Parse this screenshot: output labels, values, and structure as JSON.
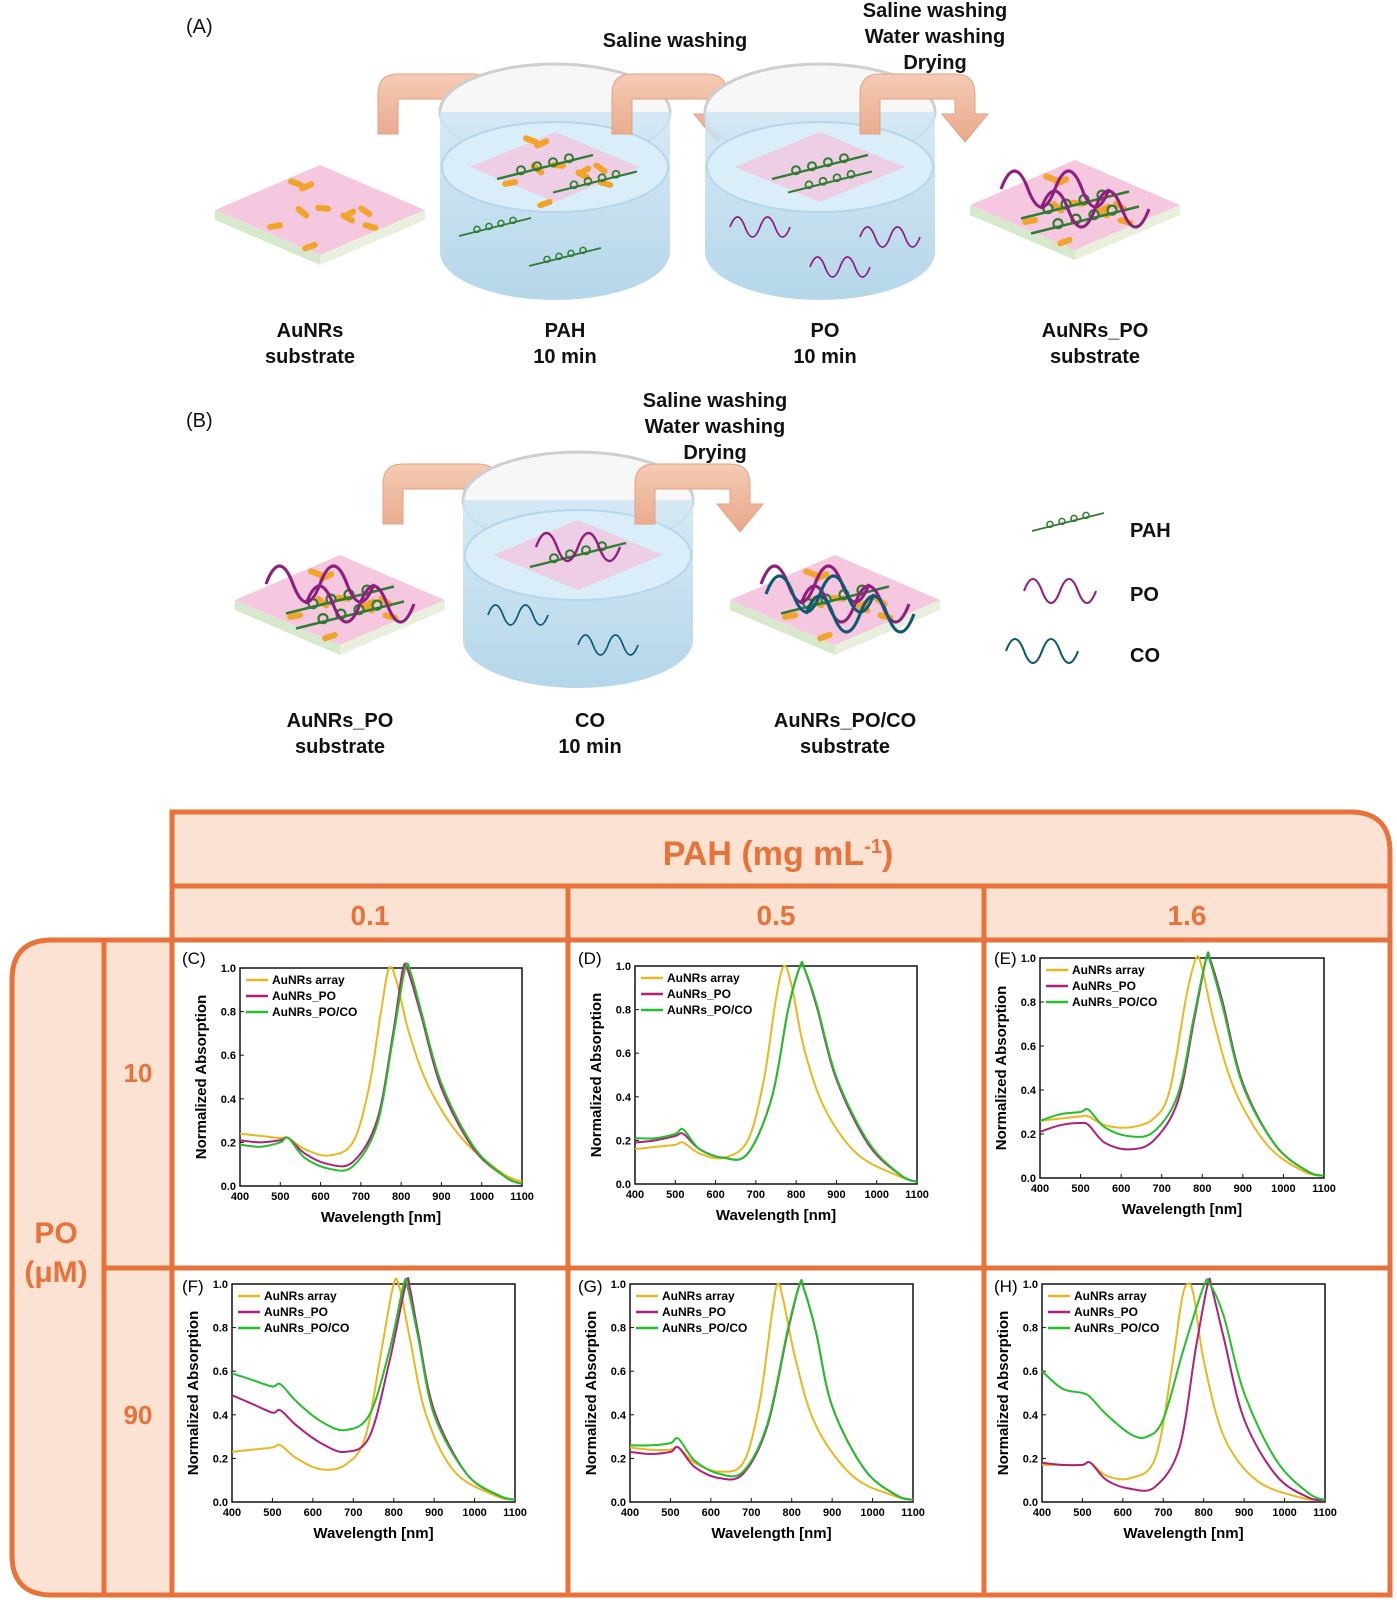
{
  "figure": {
    "panel_A": {
      "label": "(A)",
      "arrow_labels": [
        "Saline washing",
        "Saline washing\nWater washing\nDrying"
      ],
      "steps": [
        {
          "line1": "AuNRs",
          "line2": "substrate"
        },
        {
          "line1": "PAH",
          "line2": "10 min"
        },
        {
          "line1": "PO",
          "line2": "10 min"
        },
        {
          "line1": "AuNRs_PO",
          "line2": "substrate"
        }
      ]
    },
    "panel_B": {
      "label": "(B)",
      "arrow_label": "Saline washing\nWater washing\nDrying",
      "steps": [
        {
          "line1": "AuNRs_PO",
          "line2": "substrate"
        },
        {
          "line1": "CO",
          "line2": "10 min"
        },
        {
          "line1": "AuNRs_PO/CO",
          "line2": "substrate"
        }
      ],
      "legend": [
        {
          "label": "PAH",
          "color": "#2e7d32"
        },
        {
          "label": "PO",
          "color": "#8e1f7f"
        },
        {
          "label": "CO",
          "color": "#0f5a73"
        }
      ]
    },
    "grid": {
      "accent": "#e8733a",
      "fill": "#fbe2d3",
      "col_header": "PAH (mg mL",
      "col_header_sup": "-1",
      "col_header_close": ")",
      "cols": [
        "0.1",
        "0.5",
        "1.6"
      ],
      "row_header_line1": "PO",
      "row_header_line2": "(μM)",
      "rows": [
        "10",
        "90"
      ]
    }
  },
  "chart_data": [
    {
      "panel": "(C)",
      "type": "line",
      "xlabel": "Wavelength [nm]",
      "ylabel": "Normalized Absorption",
      "xlim": [
        400,
        1100
      ],
      "ylim": [
        0,
        1.0
      ],
      "xticks": [
        400,
        500,
        600,
        700,
        800,
        900,
        1000,
        1100
      ],
      "yticks": [
        "0.0",
        "0.2",
        "0.4",
        "0.6",
        "0.8",
        "1.0"
      ],
      "series": [
        {
          "name": "AuNRs array",
          "color": "#e8b820",
          "x": [
            400,
            450,
            500,
            520,
            560,
            620,
            680,
            720,
            750,
            770,
            790,
            820,
            870,
            950,
            1050,
            1100
          ],
          "y": [
            0.24,
            0.23,
            0.22,
            0.22,
            0.17,
            0.14,
            0.2,
            0.45,
            0.8,
            1.0,
            0.93,
            0.7,
            0.45,
            0.22,
            0.06,
            0.02
          ]
        },
        {
          "name": "AuNRs_PO",
          "color": "#b0207a",
          "x": [
            400,
            450,
            500,
            520,
            560,
            620,
            680,
            740,
            780,
            805,
            820,
            850,
            900,
            980,
            1060,
            1100
          ],
          "y": [
            0.21,
            0.2,
            0.21,
            0.22,
            0.15,
            0.1,
            0.11,
            0.3,
            0.7,
            1.0,
            0.97,
            0.78,
            0.45,
            0.17,
            0.04,
            0.01
          ]
        },
        {
          "name": "AuNRs_PO/CO",
          "color": "#22c02a",
          "x": [
            400,
            450,
            500,
            520,
            560,
            620,
            680,
            740,
            780,
            810,
            825,
            850,
            900,
            980,
            1060,
            1100
          ],
          "y": [
            0.19,
            0.18,
            0.2,
            0.22,
            0.13,
            0.08,
            0.09,
            0.28,
            0.68,
            1.0,
            0.97,
            0.8,
            0.47,
            0.18,
            0.04,
            0.01
          ]
        }
      ]
    },
    {
      "panel": "(D)",
      "type": "line",
      "xlabel": "Wavelength [nm]",
      "ylabel": "Normalized Absorption",
      "xlim": [
        400,
        1100
      ],
      "ylim": [
        0,
        1.0
      ],
      "xticks": [
        400,
        500,
        600,
        700,
        800,
        900,
        1000,
        1100
      ],
      "yticks": [
        "0.0",
        "0.2",
        "0.4",
        "0.6",
        "0.8",
        "1.0"
      ],
      "series": [
        {
          "name": "AuNRs array",
          "color": "#e8b820",
          "x": [
            400,
            450,
            500,
            520,
            560,
            620,
            680,
            720,
            750,
            770,
            790,
            820,
            870,
            950,
            1050,
            1100
          ],
          "y": [
            0.16,
            0.17,
            0.18,
            0.19,
            0.14,
            0.12,
            0.2,
            0.48,
            0.85,
            1.0,
            0.9,
            0.62,
            0.35,
            0.14,
            0.04,
            0.01
          ]
        },
        {
          "name": "AuNRs_PO",
          "color": "#b0207a",
          "x": [
            400,
            450,
            500,
            520,
            560,
            620,
            680,
            740,
            780,
            810,
            820,
            850,
            900,
            980,
            1060,
            1100
          ],
          "y": [
            0.19,
            0.2,
            0.22,
            0.23,
            0.16,
            0.12,
            0.14,
            0.4,
            0.8,
            1.0,
            0.99,
            0.82,
            0.48,
            0.18,
            0.04,
            0.01
          ]
        },
        {
          "name": "AuNRs_PO/CO",
          "color": "#22c02a",
          "x": [
            400,
            450,
            500,
            520,
            560,
            620,
            680,
            740,
            780,
            810,
            820,
            850,
            900,
            980,
            1060,
            1100
          ],
          "y": [
            0.21,
            0.21,
            0.23,
            0.25,
            0.16,
            0.12,
            0.14,
            0.4,
            0.8,
            1.0,
            0.99,
            0.83,
            0.49,
            0.19,
            0.04,
            0.01
          ]
        }
      ]
    },
    {
      "panel": "(E)",
      "type": "line",
      "xlabel": "Wavelength [nm]",
      "ylabel": "Normalized Absorption",
      "xlim": [
        400,
        1100
      ],
      "ylim": [
        0,
        1.0
      ],
      "xticks": [
        400,
        500,
        600,
        700,
        800,
        900,
        1000,
        1100
      ],
      "yticks": [
        "0.0",
        "0.2",
        "0.4",
        "0.6",
        "0.8",
        "1.0"
      ],
      "series": [
        {
          "name": "AuNRs array",
          "color": "#e8b820",
          "x": [
            400,
            450,
            500,
            520,
            560,
            620,
            680,
            720,
            760,
            785,
            800,
            830,
            880,
            960,
            1050,
            1100
          ],
          "y": [
            0.26,
            0.27,
            0.28,
            0.28,
            0.24,
            0.23,
            0.27,
            0.4,
            0.82,
            1.0,
            0.95,
            0.7,
            0.4,
            0.15,
            0.03,
            0.01
          ]
        },
        {
          "name": "AuNRs_PO",
          "color": "#b0207a",
          "x": [
            400,
            450,
            500,
            520,
            560,
            620,
            680,
            740,
            780,
            810,
            820,
            850,
            900,
            980,
            1060,
            1100
          ],
          "y": [
            0.21,
            0.24,
            0.25,
            0.24,
            0.16,
            0.13,
            0.17,
            0.35,
            0.72,
            1.0,
            0.99,
            0.8,
            0.43,
            0.15,
            0.03,
            0.01
          ]
        },
        {
          "name": "AuNRs_PO/CO",
          "color": "#22c02a",
          "x": [
            400,
            450,
            500,
            520,
            560,
            620,
            680,
            740,
            780,
            810,
            820,
            850,
            900,
            980,
            1060,
            1100
          ],
          "y": [
            0.26,
            0.29,
            0.3,
            0.31,
            0.23,
            0.19,
            0.21,
            0.38,
            0.74,
            1.0,
            0.98,
            0.78,
            0.42,
            0.15,
            0.03,
            0.01
          ]
        }
      ]
    },
    {
      "panel": "(F)",
      "type": "line",
      "xlabel": "Wavelength [nm]",
      "ylabel": "Normalized Absorption",
      "xlim": [
        400,
        1100
      ],
      "ylim": [
        0,
        1.0
      ],
      "xticks": [
        400,
        500,
        600,
        700,
        800,
        900,
        1000,
        1100
      ],
      "yticks": [
        "0.0",
        "0.2",
        "0.4",
        "0.6",
        "0.8",
        "1.0"
      ],
      "series": [
        {
          "name": "AuNRs array",
          "color": "#e8b820",
          "x": [
            400,
            450,
            500,
            520,
            560,
            620,
            680,
            730,
            770,
            800,
            815,
            840,
            880,
            950,
            1050,
            1100
          ],
          "y": [
            0.23,
            0.24,
            0.25,
            0.26,
            0.2,
            0.15,
            0.17,
            0.3,
            0.7,
            1.0,
            0.98,
            0.75,
            0.4,
            0.14,
            0.03,
            0.01
          ]
        },
        {
          "name": "AuNRs_PO",
          "color": "#b0207a",
          "x": [
            400,
            450,
            500,
            520,
            560,
            620,
            680,
            740,
            790,
            830,
            840,
            860,
            900,
            980,
            1060,
            1100
          ],
          "y": [
            0.49,
            0.45,
            0.41,
            0.42,
            0.35,
            0.27,
            0.23,
            0.3,
            0.65,
            1.0,
            0.98,
            0.78,
            0.42,
            0.13,
            0.03,
            0.01
          ]
        },
        {
          "name": "AuNRs_PO/CO",
          "color": "#22c02a",
          "x": [
            400,
            450,
            500,
            520,
            560,
            620,
            680,
            740,
            790,
            825,
            835,
            860,
            900,
            980,
            1060,
            1100
          ],
          "y": [
            0.59,
            0.56,
            0.53,
            0.54,
            0.46,
            0.37,
            0.33,
            0.4,
            0.7,
            1.0,
            0.98,
            0.76,
            0.4,
            0.13,
            0.03,
            0.01
          ]
        }
      ]
    },
    {
      "panel": "(G)",
      "type": "line",
      "xlabel": "Wavelength [nm]",
      "ylabel": "Normalized Absorption",
      "xlim": [
        400,
        1100
      ],
      "ylim": [
        0,
        1.0
      ],
      "xticks": [
        400,
        500,
        600,
        700,
        800,
        900,
        1000,
        1100
      ],
      "yticks": [
        "0.0",
        "0.2",
        "0.4",
        "0.6",
        "0.8",
        "1.0"
      ],
      "series": [
        {
          "name": "AuNRs array",
          "color": "#e8b820",
          "x": [
            400,
            450,
            500,
            520,
            560,
            620,
            680,
            720,
            750,
            765,
            780,
            810,
            860,
            950,
            1050,
            1100
          ],
          "y": [
            0.25,
            0.24,
            0.24,
            0.25,
            0.18,
            0.14,
            0.18,
            0.45,
            0.85,
            1.0,
            0.92,
            0.65,
            0.35,
            0.12,
            0.03,
            0.01
          ]
        },
        {
          "name": "AuNRs_PO",
          "color": "#b0207a",
          "x": [
            400,
            450,
            500,
            520,
            560,
            620,
            680,
            740,
            790,
            820,
            830,
            860,
            900,
            980,
            1060,
            1100
          ],
          "y": [
            0.23,
            0.22,
            0.23,
            0.25,
            0.16,
            0.11,
            0.13,
            0.35,
            0.78,
            1.0,
            0.98,
            0.78,
            0.44,
            0.15,
            0.03,
            0.01
          ]
        },
        {
          "name": "AuNRs_PO/CO",
          "color": "#22c02a",
          "x": [
            400,
            450,
            500,
            520,
            560,
            620,
            680,
            740,
            790,
            820,
            830,
            860,
            900,
            980,
            1060,
            1100
          ],
          "y": [
            0.26,
            0.26,
            0.27,
            0.29,
            0.19,
            0.13,
            0.14,
            0.36,
            0.79,
            1.0,
            0.98,
            0.78,
            0.44,
            0.15,
            0.03,
            0.01
          ]
        }
      ]
    },
    {
      "panel": "(H)",
      "type": "line",
      "xlabel": "Wavelength [nm]",
      "ylabel": "Normalized Absorption",
      "xlim": [
        400,
        1100
      ],
      "ylim": [
        0,
        1.0
      ],
      "xticks": [
        400,
        500,
        600,
        700,
        800,
        900,
        1000,
        1100
      ],
      "yticks": [
        "0.0",
        "0.2",
        "0.4",
        "0.6",
        "0.8",
        "1.0"
      ],
      "series": [
        {
          "name": "AuNRs array",
          "color": "#e8b820",
          "x": [
            400,
            450,
            500,
            520,
            560,
            620,
            680,
            720,
            745,
            760,
            775,
            800,
            850,
            930,
            1040,
            1100
          ],
          "y": [
            0.17,
            0.17,
            0.17,
            0.18,
            0.12,
            0.11,
            0.2,
            0.6,
            0.92,
            1.0,
            0.95,
            0.65,
            0.3,
            0.1,
            0.02,
            0.01
          ]
        },
        {
          "name": "AuNRs_PO",
          "color": "#b0207a",
          "x": [
            400,
            450,
            500,
            520,
            560,
            620,
            680,
            740,
            780,
            810,
            820,
            850,
            900,
            980,
            1060,
            1100
          ],
          "y": [
            0.18,
            0.17,
            0.17,
            0.18,
            0.1,
            0.06,
            0.07,
            0.25,
            0.7,
            1.0,
            0.98,
            0.75,
            0.38,
            0.12,
            0.02,
            0.01
          ]
        },
        {
          "name": "AuNRs_PO/CO",
          "color": "#22c02a",
          "x": [
            400,
            450,
            500,
            520,
            560,
            620,
            660,
            700,
            750,
            800,
            815,
            850,
            900,
            980,
            1060,
            1100
          ],
          "y": [
            0.6,
            0.52,
            0.5,
            0.48,
            0.4,
            0.31,
            0.3,
            0.38,
            0.7,
            0.99,
            1.0,
            0.85,
            0.5,
            0.19,
            0.04,
            0.01
          ]
        }
      ]
    }
  ]
}
